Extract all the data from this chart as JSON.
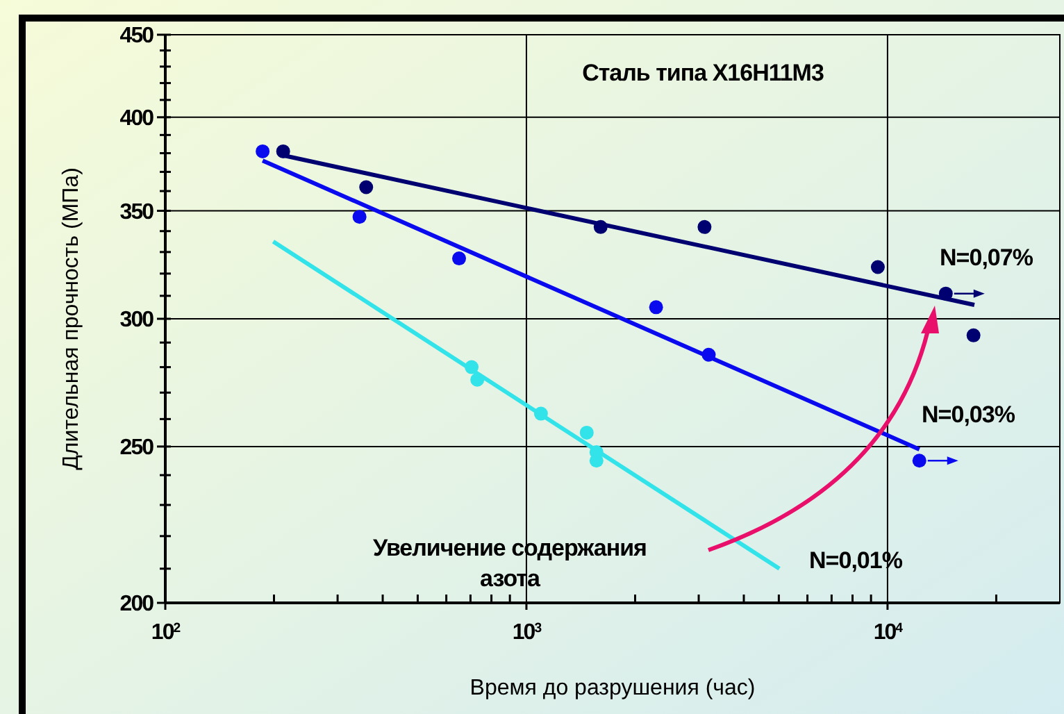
{
  "chart_data": {
    "type": "scatter",
    "title": "Сталь типа X16H11M3",
    "xlabel": "Время до разрушения (час)",
    "ylabel": "Длительная прочность (МПа)",
    "log": "xy",
    "xlim": [
      100,
      30000
    ],
    "ylim": [
      200,
      450
    ],
    "xticks": [
      {
        "value": 100,
        "label": "10$^{2}$"
      },
      {
        "value": 200,
        "label": null
      },
      {
        "value": 300,
        "label": null
      },
      {
        "value": 400,
        "label": null
      },
      {
        "value": 500,
        "label": null
      },
      {
        "value": 600,
        "label": null
      },
      {
        "value": 700,
        "label": null
      },
      {
        "value": 800,
        "label": null
      },
      {
        "value": 900,
        "label": null
      },
      {
        "value": 1000,
        "label": "10$^{3}$"
      },
      {
        "value": 2000,
        "label": null
      },
      {
        "value": 3000,
        "label": null
      },
      {
        "value": 4000,
        "label": null
      },
      {
        "value": 5000,
        "label": null
      },
      {
        "value": 6000,
        "label": null
      },
      {
        "value": 7000,
        "label": null
      },
      {
        "value": 8000,
        "label": null
      },
      {
        "value": 9000,
        "label": null
      },
      {
        "value": 10000,
        "label": "10$^{4}$"
      },
      {
        "value": 20000,
        "label": null
      }
    ],
    "yticks": [
      200,
      {
        "value": 210,
        "label": null
      },
      {
        "value": 220,
        "label": null
      },
      {
        "value": 230,
        "label": null
      },
      {
        "value": 240,
        "label": null
      },
      250,
      {
        "value": 260,
        "label": null
      },
      {
        "value": 270,
        "label": null
      },
      {
        "value": 280,
        "label": null
      },
      {
        "value": 290,
        "label": null
      },
      300,
      {
        "value": 310,
        "label": null
      },
      {
        "value": 320,
        "label": null
      },
      {
        "value": 330,
        "label": null
      },
      {
        "value": 340,
        "label": null
      },
      350,
      {
        "value": 360,
        "label": null
      },
      {
        "value": 370,
        "label": null
      },
      {
        "value": 380,
        "label": null
      },
      {
        "value": 390,
        "label": null
      },
      400,
      {
        "value": 410,
        "label": null
      },
      {
        "value": 420,
        "label": null
      },
      {
        "value": 430,
        "label": null
      },
      {
        "value": 440,
        "label": null
      },
      450
    ],
    "grid": true,
    "line_style": "solid",
    "series": [
      {
        "marker": "circle",
        "color": "#000070",
        "x": [
          14500,
          212,
          360,
          1605,
          3113,
          9400,
          17300
        ],
        "values": [
          311,
          381,
          362,
          342,
          342,
          323,
          293
        ]
      },
      {
        "marker": "circle",
        "color": "#0a0aef",
        "x": [
          12250,
          186,
          345,
          651,
          2286,
          3198
        ],
        "values": [
          245,
          381,
          347,
          327,
          305,
          285
        ]
      },
      {
        "marker": "circle",
        "color": "#33e3ea",
        "x": [
          705,
          731,
          1097,
          1469,
          1563,
          1563
        ],
        "values": [
          280,
          275,
          262,
          255,
          248,
          245
        ]
      },
      {
        "type": "line",
        "marker": "none",
        "color": "#000070",
        "x": [
          210,
          17400
        ],
        "values": [
          379,
          306
        ]
      },
      {
        "type": "line",
        "marker": "none",
        "color": "#0a0aef",
        "x": [
          186,
          12250
        ],
        "values": [
          376,
          249
        ]
      },
      {
        "type": "line",
        "marker": "none",
        "color": "#33e3ea",
        "x": [
          199,
          5018
        ],
        "values": [
          335,
          210
        ]
      }
    ],
    "annotations": [
      "N=0,07%",
      "N=0,03%",
      "N=0,01%",
      "Увеличение содержания\nазота"
    ]
  }
}
